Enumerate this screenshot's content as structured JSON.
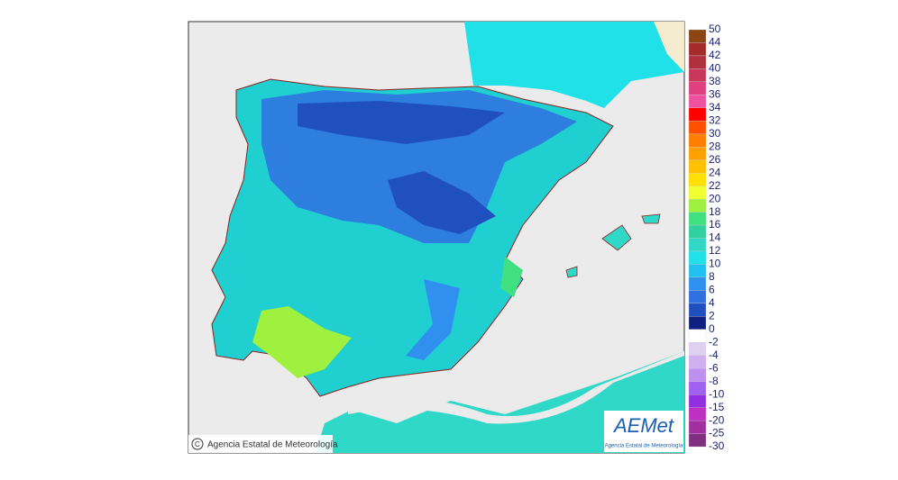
{
  "map": {
    "credit": "Agencia Estatal de Meteorología",
    "logo": {
      "title": "AEMet",
      "subtitle": "Agencia Estatal de Meteorología"
    },
    "legend": {
      "labels": [
        50,
        44,
        42,
        40,
        38,
        36,
        34,
        32,
        30,
        28,
        26,
        24,
        22,
        20,
        18,
        16,
        14,
        12,
        10,
        8,
        6,
        4,
        2,
        0,
        -2,
        -4,
        -6,
        -8,
        -10,
        -15,
        -20,
        -25,
        -30
      ],
      "colors": [
        "#8b4513",
        "#a52a2a",
        "#b03040",
        "#c8385a",
        "#e04080",
        "#f050a0",
        "#ff0000",
        "#ff5000",
        "#ff8000",
        "#ffa000",
        "#ffc000",
        "#ffe000",
        "#f0ff30",
        "#a0f040",
        "#40e080",
        "#30d0a0",
        "#30d8c8",
        "#20e0e8",
        "#20c0f0",
        "#3090f0",
        "#3070e0",
        "#2050c0",
        "#102080",
        "#ffffff",
        "#e0d0f0",
        "#d0b0f0",
        "#c090f0",
        "#a060f0",
        "#9030e0",
        "#c030c0",
        "#a030a0",
        "#803080"
      ]
    }
  }
}
